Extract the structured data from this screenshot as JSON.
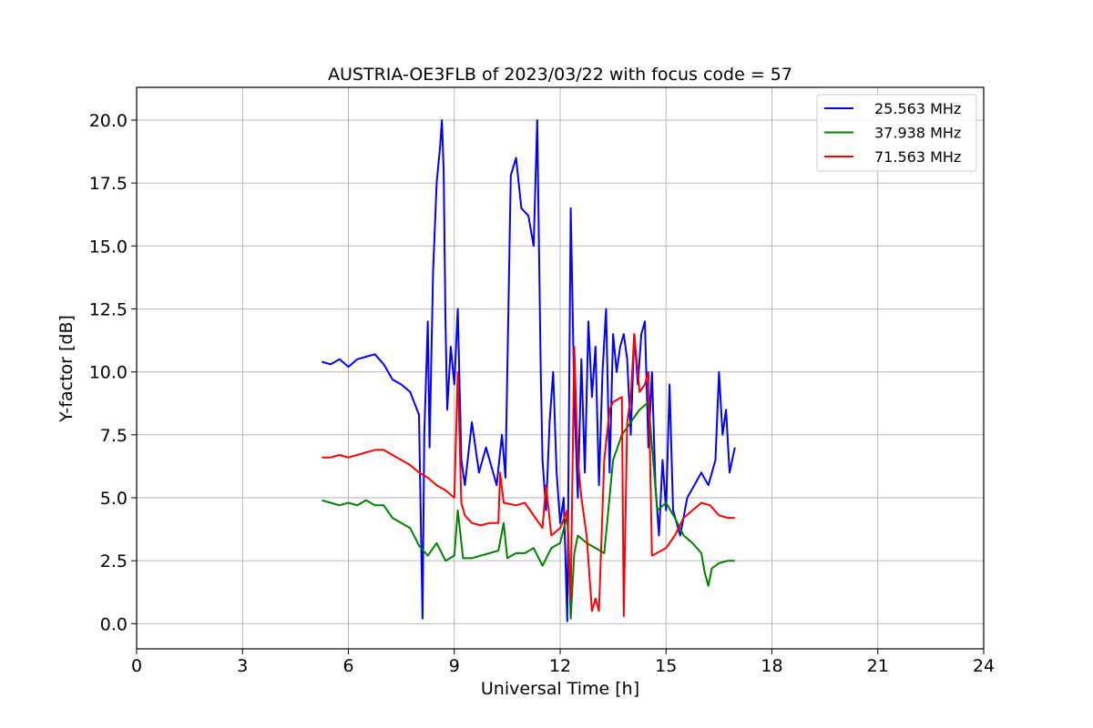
{
  "chart_data": {
    "type": "line",
    "title": "AUSTRIA-OE3FLB of 2023/03/22 with focus code = 57",
    "xlabel": "Universal Time [h]",
    "ylabel": "Y-factor [dB]",
    "xlim": [
      0,
      24
    ],
    "ylim": [
      -1.0,
      21.3
    ],
    "xticks": [
      0,
      3,
      6,
      9,
      12,
      15,
      18,
      21,
      24
    ],
    "xtick_labels": [
      "0",
      "3",
      "6",
      "9",
      "12",
      "15",
      "18",
      "21",
      "24"
    ],
    "yticks": [
      0.0,
      2.5,
      5.0,
      7.5,
      10.0,
      12.5,
      15.0,
      17.5,
      20.0
    ],
    "ytick_labels": [
      "0.0",
      "2.5",
      "5.0",
      "7.5",
      "10.0",
      "12.5",
      "15.0",
      "17.5",
      "20.0"
    ],
    "grid": true,
    "legend_position": "top-right",
    "series": [
      {
        "name": "25.563 MHz",
        "color": "#0000ff",
        "x": [
          5.25,
          5.5,
          5.75,
          6.0,
          6.25,
          6.5,
          6.75,
          7.0,
          7.25,
          7.5,
          7.75,
          8.0,
          8.1,
          8.15,
          8.25,
          8.3,
          8.4,
          8.5,
          8.6,
          8.65,
          8.7,
          8.75,
          8.8,
          8.9,
          9.0,
          9.1,
          9.2,
          9.3,
          9.5,
          9.7,
          9.9,
          10.0,
          10.2,
          10.35,
          10.45,
          10.6,
          10.75,
          10.9,
          11.1,
          11.25,
          11.35,
          11.45,
          11.5,
          11.6,
          11.7,
          11.8,
          11.9,
          12.0,
          12.1,
          12.2,
          12.3,
          12.4,
          12.5,
          12.6,
          12.7,
          12.8,
          12.9,
          13.0,
          13.1,
          13.2,
          13.3,
          13.4,
          13.5,
          13.6,
          13.7,
          13.8,
          13.9,
          14.0,
          14.1,
          14.2,
          14.3,
          14.4,
          14.5,
          14.6,
          14.7,
          14.8,
          14.9,
          15.0,
          15.1,
          15.2,
          15.4,
          15.6,
          15.8,
          16.0,
          16.2,
          16.4,
          16.5,
          16.6,
          16.7,
          16.8,
          16.95
        ],
        "y": [
          10.4,
          10.3,
          10.5,
          10.2,
          10.5,
          10.6,
          10.7,
          10.3,
          9.7,
          9.5,
          9.2,
          8.3,
          0.2,
          7.5,
          12.0,
          7.0,
          14.0,
          17.5,
          19.0,
          20.0,
          18.0,
          12.0,
          8.5,
          11.0,
          9.5,
          12.5,
          6.5,
          5.5,
          8.0,
          6.0,
          7.0,
          6.5,
          5.5,
          7.5,
          5.8,
          17.8,
          18.5,
          16.5,
          16.2,
          15.0,
          20.0,
          10.0,
          6.5,
          4.5,
          8.0,
          10.0,
          6.0,
          4.0,
          5.0,
          0.1,
          16.5,
          9.0,
          5.0,
          10.5,
          6.0,
          12.0,
          9.0,
          11.0,
          5.5,
          10.0,
          12.5,
          6.0,
          11.5,
          10.0,
          11.0,
          11.5,
          10.5,
          7.5,
          11.5,
          9.5,
          11.5,
          12.0,
          7.0,
          10.0,
          5.5,
          3.5,
          6.5,
          4.5,
          9.5,
          4.5,
          3.5,
          5.0,
          5.5,
          6.0,
          5.5,
          6.5,
          10.0,
          7.5,
          8.5,
          6.0,
          7.0
        ]
      },
      {
        "name": "37.938 MHz",
        "color": "#008000",
        "x": [
          5.25,
          5.5,
          5.75,
          6.0,
          6.25,
          6.5,
          6.75,
          7.0,
          7.25,
          7.5,
          7.75,
          8.0,
          8.25,
          8.5,
          8.75,
          9.0,
          9.1,
          9.25,
          9.5,
          9.75,
          10.0,
          10.25,
          10.4,
          10.5,
          10.75,
          11.0,
          11.25,
          11.5,
          11.75,
          12.0,
          12.2,
          12.3,
          12.4,
          12.5,
          12.75,
          13.0,
          13.25,
          13.5,
          13.75,
          14.0,
          14.25,
          14.5,
          14.75,
          15.0,
          15.25,
          15.5,
          15.75,
          16.0,
          16.1,
          16.2,
          16.3,
          16.5,
          16.75,
          16.95
        ],
        "y": [
          4.9,
          4.8,
          4.7,
          4.8,
          4.7,
          4.9,
          4.7,
          4.7,
          4.2,
          4.0,
          3.8,
          3.1,
          2.7,
          3.2,
          2.5,
          2.7,
          4.5,
          2.6,
          2.6,
          2.7,
          2.8,
          2.9,
          4.0,
          2.6,
          2.8,
          2.8,
          3.0,
          2.3,
          3.0,
          3.2,
          4.3,
          0.2,
          2.8,
          3.5,
          3.2,
          3.0,
          2.8,
          6.5,
          7.5,
          8.0,
          8.5,
          8.8,
          4.5,
          4.8,
          4.2,
          3.5,
          3.2,
          2.8,
          2.0,
          1.5,
          2.2,
          2.4,
          2.5,
          2.5
        ]
      },
      {
        "name": "71.563 MHz",
        "color": "#ff0000",
        "x": [
          5.25,
          5.5,
          5.75,
          6.0,
          6.25,
          6.5,
          6.75,
          7.0,
          7.25,
          7.5,
          7.75,
          8.0,
          8.25,
          8.5,
          8.75,
          9.0,
          9.1,
          9.2,
          9.3,
          9.5,
          9.75,
          10.0,
          10.25,
          10.3,
          10.4,
          10.75,
          11.0,
          11.25,
          11.5,
          11.6,
          11.75,
          12.0,
          12.2,
          12.3,
          12.4,
          12.5,
          12.6,
          12.75,
          12.9,
          13.0,
          13.1,
          13.25,
          13.4,
          13.5,
          13.75,
          13.8,
          13.9,
          14.0,
          14.1,
          14.25,
          14.4,
          14.5,
          14.6,
          15.0,
          15.25,
          15.5,
          15.75,
          16.0,
          16.25,
          16.5,
          16.75,
          16.95
        ],
        "y": [
          6.6,
          6.6,
          6.7,
          6.6,
          6.7,
          6.8,
          6.9,
          6.9,
          6.7,
          6.5,
          6.3,
          6.0,
          5.8,
          5.5,
          5.3,
          5.0,
          10.0,
          4.8,
          4.3,
          4.0,
          3.9,
          4.0,
          4.0,
          6.0,
          4.8,
          4.7,
          4.8,
          4.3,
          3.8,
          5.5,
          3.5,
          3.8,
          4.5,
          1.0,
          11.0,
          6.5,
          5.0,
          3.5,
          0.5,
          1.0,
          0.5,
          6.5,
          8.5,
          8.8,
          9.0,
          0.3,
          8.0,
          9.0,
          11.5,
          9.2,
          9.5,
          10.0,
          2.7,
          3.0,
          3.5,
          4.2,
          4.5,
          4.8,
          4.7,
          4.3,
          4.2,
          4.2
        ]
      }
    ]
  }
}
